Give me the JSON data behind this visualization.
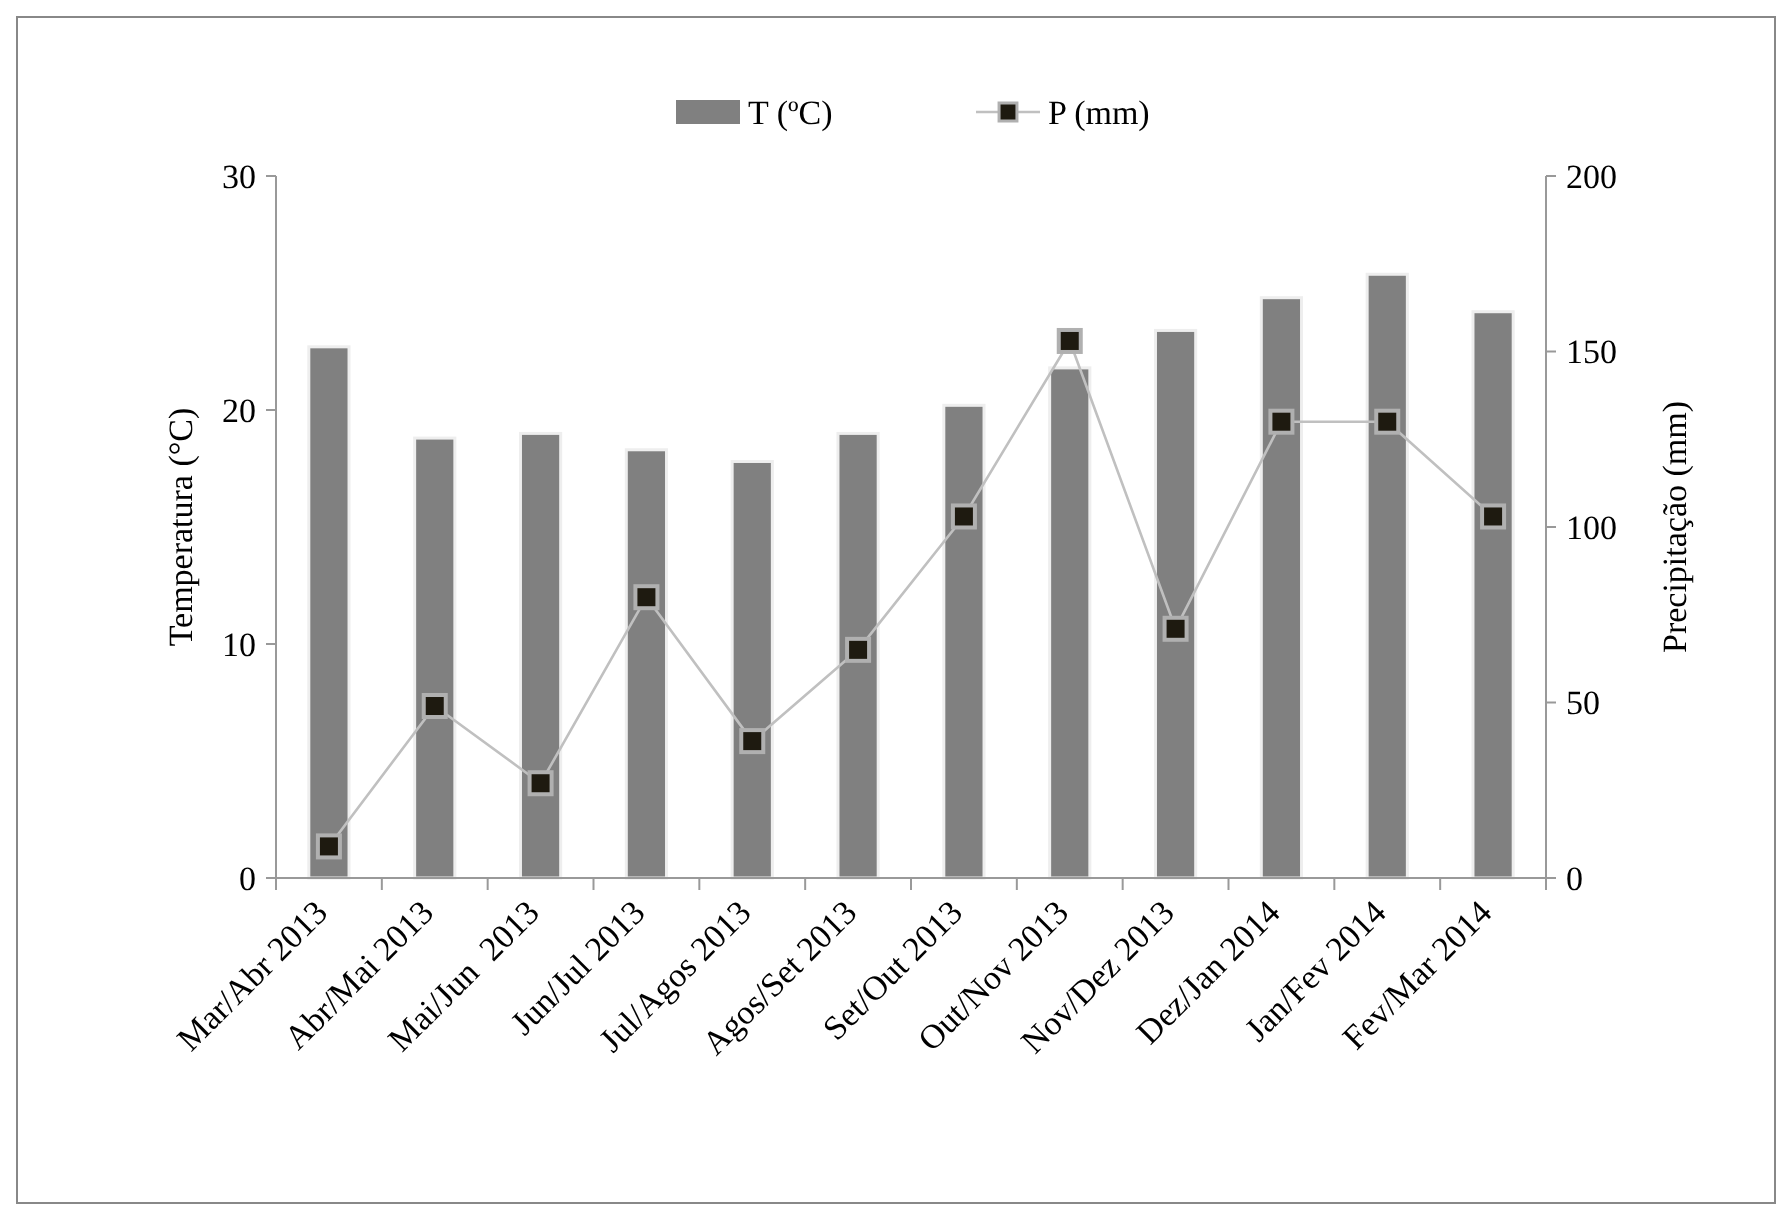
{
  "chart_data": {
    "type": "bar",
    "categories": [
      "Mar/Abr 2013",
      "Abr/Mai 2013",
      "Mai/Jun  2013",
      "Jun/Jul 2013",
      "Jul/Agos 2013",
      "Agos/Set 2013",
      "Set/Out 2013",
      "Out/Nov 2013",
      "Nov/Dez 2013",
      "Dez/Jan 2014",
      "Jan/Fev 2014",
      "Fev/Mar 2014"
    ],
    "series": [
      {
        "name": "T (ºC)",
        "color": "#808080",
        "values": [
          22.7,
          18.8,
          19.0,
          18.3,
          17.8,
          19.0,
          20.2,
          21.8,
          23.4,
          24.8,
          25.8,
          24.2
        ]
      },
      {
        "name": "P (mm)",
        "type": "line",
        "axis": "y2",
        "color": "#c0c0c0",
        "values": [
          9,
          49,
          27,
          80,
          39,
          65,
          103,
          153,
          71,
          130,
          130,
          103
        ]
      }
    ],
    "ylabel": "Temperatura (°C)",
    "y2label": "Precipitação (mm)",
    "ylim": [
      0,
      30
    ],
    "yticks": [
      0,
      10,
      20,
      30
    ],
    "y2lim": [
      0,
      200
    ],
    "y2ticks": [
      0,
      50,
      100,
      150,
      200
    ],
    "legend": "top",
    "marker": "square",
    "grid": false
  }
}
